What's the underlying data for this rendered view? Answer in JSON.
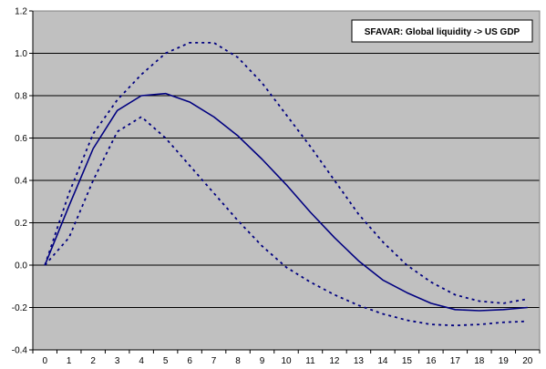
{
  "chart_data": {
    "type": "line",
    "title": "",
    "legend_label": "SFAVAR: Global liquidity -> US GDP",
    "legend_position": "top-right",
    "xlabel": "",
    "ylabel": "",
    "x": [
      0,
      1,
      2,
      3,
      4,
      5,
      6,
      7,
      8,
      9,
      10,
      11,
      12,
      13,
      14,
      15,
      16,
      17,
      18,
      19,
      20
    ],
    "xlim": [
      0,
      20
    ],
    "ylim": [
      -0.4,
      1.2
    ],
    "y_ticks": [
      -0.4,
      -0.2,
      0.0,
      0.2,
      0.4,
      0.6,
      0.8,
      1.0,
      1.2
    ],
    "y_tick_labels": [
      "-0.4",
      "-0.2",
      "0.0",
      "0.2",
      "0.4",
      "0.6",
      "0.8",
      "1.0",
      "1.2"
    ],
    "x_tick_labels": [
      "0",
      "1",
      "2",
      "3",
      "4",
      "5",
      "6",
      "7",
      "8",
      "9",
      "10",
      "11",
      "12",
      "13",
      "14",
      "15",
      "16",
      "17",
      "18",
      "19",
      "20"
    ],
    "grid": "horizontal",
    "series": [
      {
        "style": "solid",
        "color": "#000080",
        "values": [
          0.0,
          0.28,
          0.55,
          0.73,
          0.8,
          0.81,
          0.77,
          0.7,
          0.61,
          0.5,
          0.38,
          0.25,
          0.13,
          0.02,
          -0.07,
          -0.13,
          -0.18,
          -0.21,
          -0.215,
          -0.21,
          -0.2
        ]
      },
      {
        "style": "dotted",
        "color": "#000080",
        "values": [
          0.0,
          0.34,
          0.62,
          0.78,
          0.9,
          1.0,
          1.05,
          1.05,
          0.98,
          0.86,
          0.71,
          0.56,
          0.4,
          0.24,
          0.11,
          0.0,
          -0.08,
          -0.14,
          -0.17,
          -0.18,
          -0.16
        ]
      },
      {
        "style": "dotted",
        "color": "#000080",
        "values": [
          0.0,
          0.13,
          0.4,
          0.63,
          0.7,
          0.6,
          0.47,
          0.34,
          0.21,
          0.09,
          -0.01,
          -0.08,
          -0.14,
          -0.19,
          -0.23,
          -0.26,
          -0.28,
          -0.285,
          -0.28,
          -0.27,
          -0.265
        ]
      }
    ],
    "colors": {
      "plot_background": "#c0c0c0",
      "gridline": "#000000",
      "line": "#000080"
    }
  }
}
